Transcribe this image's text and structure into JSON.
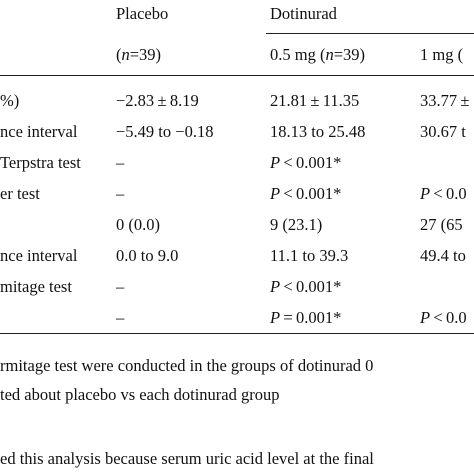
{
  "header": {
    "placebo": "Placebo",
    "dotinurad": "Dotinurad",
    "placebo_n": "(n=39)",
    "dose1": "0.5 mg (n=39)",
    "dose2": "1 mg ("
  },
  "rows": [
    {
      "label": "%)",
      "placebo": "−2.83 ± 8.19",
      "d05": "21.81 ± 11.35",
      "d1": "33.77 ±"
    },
    {
      "label": "nce interval",
      "placebo": "−5.49 to −0.18",
      "d05": "18.13 to 25.48",
      "d1": "30.67 t"
    },
    {
      "label": "Terpstra test",
      "placebo": "–",
      "d05": "P < 0.001*",
      "d1": ""
    },
    {
      "label": "er test",
      "placebo": "–",
      "d05": "P < 0.001*",
      "d1": "P < 0.0"
    },
    {
      "label": "",
      "placebo": "0 (0.0)",
      "d05": "9 (23.1)",
      "d1": "27 (65"
    },
    {
      "label": "nce interval",
      "placebo": "0.0 to 9.0",
      "d05": "11.1 to 39.3",
      "d1": "49.4 to"
    },
    {
      "label": "mitage test",
      "placebo": "–",
      "d05": "P < 0.001*",
      "d1": ""
    },
    {
      "label": "",
      "placebo": "–",
      "d05": "P = 0.001*",
      "d1": "P < 0.0"
    }
  ],
  "footnotes": [
    "rmitage test were conducted in the groups of dotinurad 0",
    "ted about placebo vs each dotinurad group",
    "ed this analysis because serum uric acid level at the final"
  ]
}
